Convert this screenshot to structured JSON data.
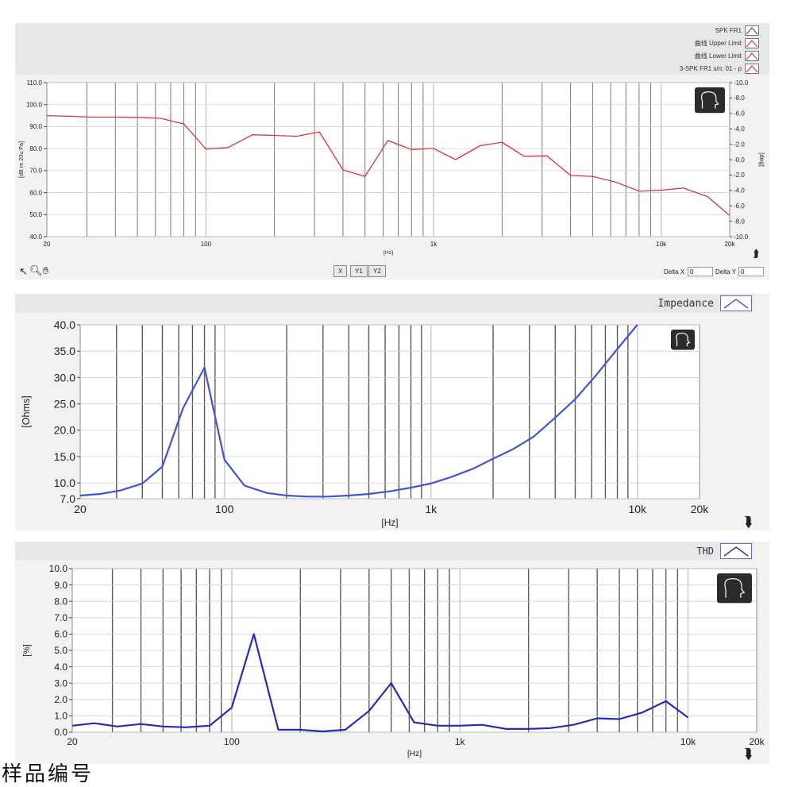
{
  "chart_data": [
    {
      "type": "line",
      "xscale": "log",
      "xlim": [
        20,
        20000
      ],
      "ylim": [
        40,
        110
      ],
      "y2lim": [
        -10,
        10
      ],
      "xlabel": "[Hz]",
      "ylabel": "[dB re 20u Pa]",
      "y2label": "[deg]",
      "x_tick_labels": [
        "20",
        "100",
        "1k",
        "10k",
        "20k"
      ],
      "y_tick_labels": [
        "110.0",
        "100.0",
        "90.0",
        "80.0",
        "70.0",
        "60.0",
        "50.0",
        "40.0"
      ],
      "y2_tick_labels": [
        "-10.0",
        "-8.0",
        "-6.0",
        "-4.0",
        "-2.0",
        "-0.0",
        "-2.0",
        "-4.0",
        "-6.0",
        "-8.0",
        "-10.0"
      ],
      "grid": true,
      "legend_position": "top-right",
      "legend": [
        "SPK FR1",
        "曲线 Upper Limit",
        "曲线 Lower Limit",
        "3-SPK FR1 s/n: 01 - p"
      ],
      "series": [
        {
          "name": "3-SPK FR1 s/n: 01 - p",
          "color": "#d9343a",
          "x": [
            20,
            25,
            31.5,
            40,
            50,
            63,
            80,
            100,
            125,
            160,
            200,
            250,
            315,
            400,
            500,
            630,
            800,
            1000,
            1250,
            1600,
            2000,
            2500,
            3150,
            4000,
            5000,
            6300,
            8000,
            10000,
            12500,
            16000,
            20000
          ],
          "y": [
            95,
            94.7,
            94.3,
            94.3,
            94.2,
            93.8,
            91.2,
            79.8,
            80.5,
            86.3,
            86,
            85.6,
            87.6,
            70.3,
            67.4,
            83.7,
            79.6,
            80.1,
            75,
            81.3,
            82.9,
            76.5,
            76.7,
            67.8,
            67.4,
            64.8,
            60.7,
            61.1,
            62.1,
            58.2,
            49.6
          ]
        }
      ],
      "toolbar": {
        "buttons": [
          "X",
          "Y1",
          "Y2"
        ],
        "delta_x_label": "Delta X",
        "delta_x_value": "0",
        "delta_y_label": "Delta Y",
        "delta_y_value": "0"
      }
    },
    {
      "type": "line",
      "xscale": "log",
      "xlim": [
        20,
        20000
      ],
      "ylim": [
        7,
        40
      ],
      "xlabel": "[Hz]",
      "ylabel": "[Ohms]",
      "x_tick_labels": [
        "20",
        "100",
        "1k",
        "10k",
        "20k"
      ],
      "y_tick_labels": [
        "40.0",
        "35.0",
        "30.0",
        "25.0",
        "20.0",
        "15.0",
        "10.0",
        "7.0"
      ],
      "grid": true,
      "legend_position": "top-right",
      "legend": [
        "Impedance"
      ],
      "series": [
        {
          "name": "Impedance",
          "color": "#4055d0",
          "x": [
            20,
            25,
            31.5,
            40,
            50,
            63,
            80,
            100,
            125,
            160,
            200,
            250,
            315,
            400,
            500,
            630,
            800,
            1000,
            1250,
            1600,
            2000,
            2500,
            3150,
            4000,
            5000,
            6300,
            8000,
            10000
          ],
          "y": [
            7.6,
            7.9,
            8.6,
            9.9,
            13.1,
            24.2,
            31.9,
            14.4,
            9.5,
            8.1,
            7.6,
            7.4,
            7.4,
            7.6,
            7.9,
            8.4,
            9.1,
            9.9,
            11.1,
            12.7,
            14.6,
            16.4,
            18.8,
            22.4,
            25.9,
            30.4,
            35.4,
            40.3
          ]
        }
      ]
    },
    {
      "type": "line",
      "xscale": "log",
      "xlim": [
        20,
        20000
      ],
      "ylim": [
        0,
        10
      ],
      "xlabel": "[Hz]",
      "ylabel": "[%]",
      "x_tick_labels": [
        "20",
        "100",
        "1k",
        "10k",
        "20k"
      ],
      "y_tick_labels": [
        "10.0",
        "9.0",
        "8.0",
        "7.0",
        "6.0",
        "5.0",
        "4.0",
        "3.0",
        "2.0",
        "1.0",
        "0.0"
      ],
      "grid": true,
      "legend_position": "top-right",
      "legend": [
        "THD"
      ],
      "series": [
        {
          "name": "THD",
          "color": "#2a2ab0",
          "x": [
            20,
            25,
            31.5,
            40,
            50,
            63,
            80,
            100,
            125,
            160,
            200,
            250,
            315,
            400,
            500,
            630,
            800,
            1000,
            1250,
            1600,
            2000,
            2500,
            3150,
            4000,
            5000,
            6300,
            8000,
            10000
          ],
          "y": [
            0.4,
            0.55,
            0.35,
            0.5,
            0.35,
            0.3,
            0.4,
            1.5,
            6,
            0.15,
            0.15,
            0.05,
            0.15,
            1.3,
            3,
            0.6,
            0.4,
            0.4,
            0.45,
            0.2,
            0.2,
            0.25,
            0.45,
            0.85,
            0.8,
            1.2,
            1.9,
            0.9
          ]
        }
      ]
    }
  ],
  "footer_text": "样品编号"
}
